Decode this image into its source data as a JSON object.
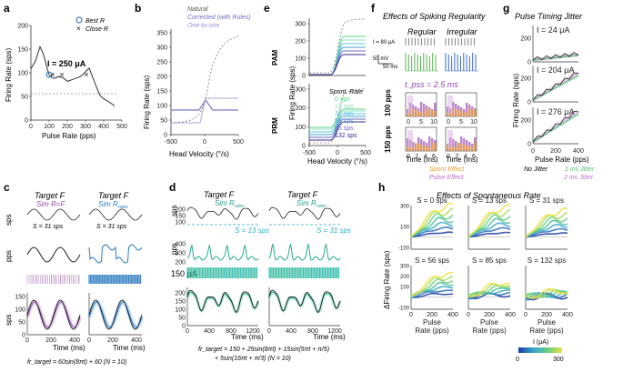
{
  "panels": {
    "a": {
      "letter": "a",
      "current_label": "I = 250 μA",
      "legend": {
        "best": "Best R",
        "close": "Close R"
      },
      "ylabel": "Firing Rate (sps)",
      "xlabel": "Pulse Rate (pps)",
      "yticks": [
        "0",
        "50",
        "100",
        "150",
        "200"
      ],
      "xticks": [
        "0",
        "100",
        "200",
        "300",
        "400",
        "500"
      ]
    },
    "b": {
      "letter": "b",
      "legend": {
        "natural": "Natural",
        "corrected": "Corrected (with Rules)",
        "onetoone": "One-to-one"
      },
      "ylabel": "Firing Rate (sps)",
      "xlabel": "Head Velocity (°/s)",
      "yticks": [
        "0",
        "50",
        "100",
        "150",
        "200",
        "250",
        "300",
        "350"
      ],
      "xticks": [
        "-500",
        "0",
        "500"
      ]
    },
    "c": {
      "letter": "c",
      "col1_title": "Target F",
      "col1_sub": "Sim R=F",
      "col2_title": "Target F",
      "col2_sub": "Sim R",
      "col2_sub_suffix": "rules",
      "s_label": "S = 31 sps",
      "row_labels": [
        "sps",
        "pps",
        "sps"
      ],
      "yticks_bottom": [
        "0",
        "50",
        "100",
        "150"
      ],
      "xticks": [
        "0",
        "200",
        "400"
      ],
      "xlabel": "Time (ms)",
      "formula": "fr_target = 60sin(8πt) + 60 (N = 10)"
    },
    "d": {
      "letter": "d",
      "col1_title": "Target F",
      "col1_sub": "Sim R",
      "col2_title": "Target F",
      "col2_sub": "Sim R",
      "sub_suffix": "rules",
      "s_labels": [
        "S = 13 sps",
        "S = 31 sps"
      ],
      "row_labels": [
        "sps",
        "pps"
      ],
      "current": "150 μA",
      "yticks_top": [
        "100",
        "150",
        "200"
      ],
      "yticks_mid": [
        "200",
        "300",
        "400"
      ],
      "yticks_bottom": [
        "0",
        "50",
        "100",
        "150",
        "200"
      ],
      "xticks": [
        "0",
        "400",
        "800",
        "1200"
      ],
      "xlabel": "Time (ms)",
      "formula_line1": "fr_target = 150 + 25sin(8πt) + 15sin(5πt + π/5)",
      "formula_line2": "+ 5sin(16πt + π/3) (N = 10)"
    },
    "e": {
      "letter": "e",
      "top_label": "PAM",
      "bottom_label": "PRM",
      "ylabel": "Firing Rate (sps)",
      "xlabel": "Head Velocity (°/s)",
      "yticks": [
        "0",
        "100",
        "200",
        "300"
      ],
      "xticks": [
        "-500",
        "0",
        "500"
      ],
      "legend_title": "Spont. Rate",
      "legend_items": [
        "0 sps",
        "13 sps",
        "31 sps",
        "56 sps",
        "85 sps",
        "132 sps"
      ],
      "legend_colors": [
        "#58d68d",
        "#8ee0c0",
        "#5bc8d8",
        "#4a9fd0",
        "#6b6bc8",
        "#3a2a8a"
      ]
    },
    "f": {
      "letter": "f",
      "title": "Effects of Spiking Regularity",
      "col1": "Regular",
      "col2": "Irregular",
      "current": "I = 80 μA",
      "scale_v": "50 mV",
      "scale_t": "50 ms",
      "tpss": "t_pss = 2.5 ms",
      "row_labels": [
        "100 pps",
        "150 pps"
      ],
      "xlabel": "Time (ms)",
      "xticks_top": [
        "0",
        "5",
        "10"
      ],
      "xticks_bottom": [
        "0",
        "2",
        "4",
        "6"
      ],
      "legend": {
        "spont": "Spont Effect",
        "pulse": "Pulse Effect"
      },
      "legend_colors": {
        "spont": "#e8a030",
        "pulse": "#b070c0"
      }
    },
    "g": {
      "letter": "g",
      "title": "Pulse Timing Jitter",
      "currents": [
        "I = 24 μA",
        "I = 204 μA",
        "I = 276 μA"
      ],
      "ylabel": "Firing Rate (sps)",
      "xlabel": "Pulse Rate (pps)",
      "yticks": [
        "0",
        "200"
      ],
      "xticks": [
        "0",
        "200",
        "400"
      ],
      "legend": {
        "none": "No Jitter",
        "one": "1 ms Jitter",
        "two": "2 ms Jitter"
      },
      "legend_colors": {
        "none": "#222222",
        "one": "#58c070",
        "two": "#c070d0"
      }
    },
    "h": {
      "letter": "h",
      "title": "Effects of Spontaneous Rate",
      "subplots": [
        "S = 0 sps",
        "S = 13 sps",
        "S = 31 sps",
        "S = 56 sps",
        "S = 85 sps",
        "S = 132 sps"
      ],
      "ylabel": "ΔFiring Rate (sps)",
      "yticks": [
        "-100",
        "0",
        "100",
        "200",
        "300"
      ],
      "xticks": [
        "0",
        "200",
        "400"
      ],
      "xlabel_line1": "Pulse",
      "xlabel_line2": "Rate (pps)",
      "colorbar_label": "I (μA)",
      "colorbar_ticks": [
        "0",
        "300"
      ]
    }
  },
  "chart_data": [
    {
      "type": "line",
      "title": "I = 250 μA",
      "xlabel": "Pulse Rate (pps)",
      "ylabel": "Firing Rate (sps)",
      "x": [
        0,
        25,
        50,
        70,
        90,
        100,
        115,
        130,
        150,
        175,
        200,
        230,
        260,
        280,
        300,
        320,
        340,
        360,
        380,
        400,
        430,
        460
      ],
      "y": [
        108,
        125,
        155,
        138,
        108,
        96,
        90,
        88,
        92,
        90,
        82,
        86,
        90,
        94,
        102,
        110,
        90,
        70,
        52,
        45,
        38,
        30
      ],
      "xlim": [
        0,
        500
      ],
      "ylim": [
        0,
        200
      ],
      "best_R": [
        [
          100,
          96
        ]
      ],
      "close_R": [
        [
          120,
          96
        ],
        [
          170,
          96
        ],
        [
          305,
          96
        ]
      ]
    }
  ]
}
